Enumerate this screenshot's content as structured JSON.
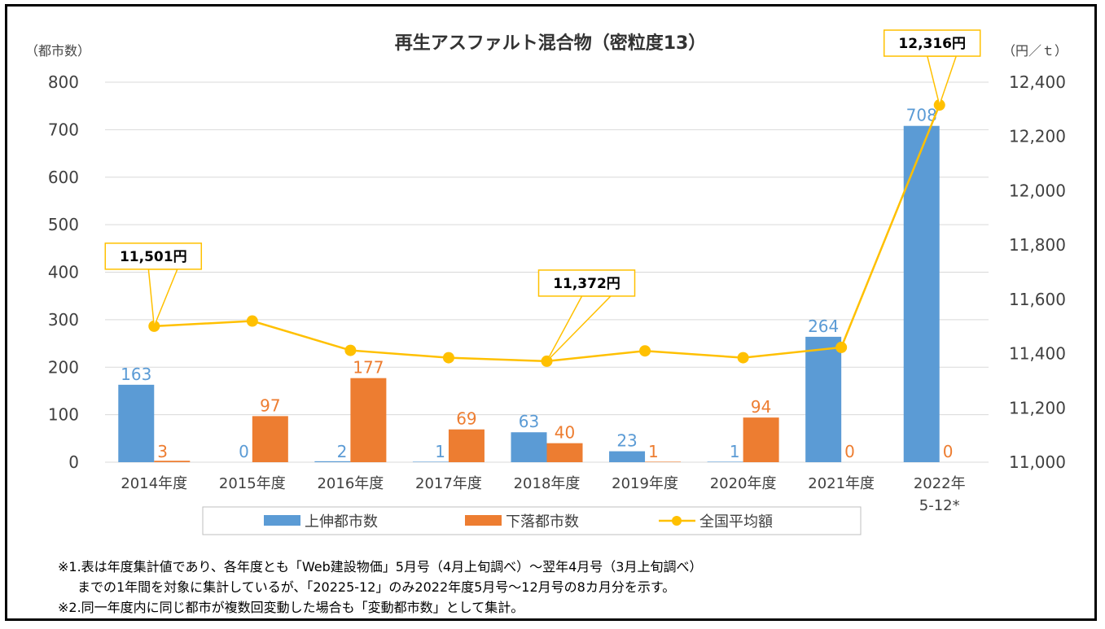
{
  "chart_data": {
    "type": "bar",
    "title": "再生アスファルト混合物（密粒度13）",
    "y_left_unit": "（都市数）",
    "y_right_unit": "（円／ｔ）",
    "categories": [
      "2014年度",
      "2015年度",
      "2016年度",
      "2017年度",
      "2018年度",
      "2019年度",
      "2020年度",
      "2021年度",
      "2022年\n5-12*"
    ],
    "y_left": {
      "min": 0,
      "max": 800,
      "ticks": [
        "0",
        "100",
        "200",
        "300",
        "400",
        "500",
        "600",
        "700",
        "800"
      ]
    },
    "y_right": {
      "min": 11000,
      "max": 12400,
      "ticks": [
        "11,000",
        "11,200",
        "11,400",
        "11,600",
        "11,800",
        "12,000",
        "12,200",
        "12,400"
      ]
    },
    "grid": true,
    "legend_position": "bottom",
    "series": [
      {
        "name": "上伸都市数",
        "type": "bar",
        "axis": "left",
        "color": "#5B9BD5",
        "values": [
          163,
          0,
          2,
          1,
          63,
          23,
          1,
          264,
          708
        ]
      },
      {
        "name": "下落都市数",
        "type": "bar",
        "axis": "left",
        "color": "#ED7D31",
        "values": [
          3,
          97,
          177,
          69,
          40,
          1,
          94,
          0,
          0
        ]
      },
      {
        "name": "全国平均額",
        "type": "line",
        "axis": "right",
        "color": "#FFC000",
        "values": [
          11501,
          11520,
          11412,
          11385,
          11372,
          11410,
          11385,
          11423,
          12316
        ]
      }
    ],
    "callouts": [
      {
        "series": "全国平均額",
        "index": 0,
        "text": "11,501円"
      },
      {
        "series": "全国平均額",
        "index": 4,
        "text": "11,372円"
      },
      {
        "series": "全国平均額",
        "index": 8,
        "text": "12,316円"
      }
    ]
  },
  "notes": {
    "line1": "※1.表は年度集計値であり、各年度とも「Web建設物価」5月号（4月上旬調べ）～翌年4月号（3月上旬調べ）",
    "line2": "までの1年間を対象に集計しているが、「20225-12」のみ2022年度5月号～12月号の8カ月分を示す。",
    "line3": "※2.同一年度内に同じ都市が複数回変動した場合も「変動都市数」として集計。"
  }
}
